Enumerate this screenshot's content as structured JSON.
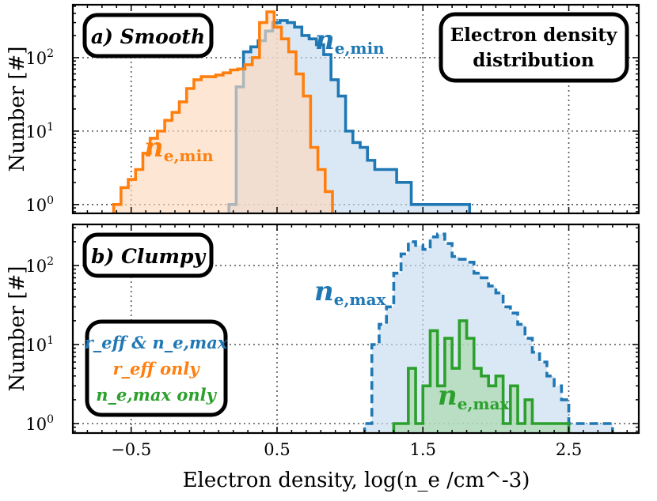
{
  "chart_data": [
    {
      "type": "histogram",
      "panel": "a",
      "panel_label": "a) Smooth",
      "title": "Electron density distribution",
      "title_lines": [
        "Electron density",
        "distribution"
      ],
      "yscale": "log",
      "ylabel": "Number [#]",
      "yticks": [
        "10^0",
        "10^1",
        "10^2"
      ],
      "xticks": [
        "-0.5",
        "0.5",
        "1.5",
        "2.5"
      ],
      "xlim": [
        -0.9,
        2.98
      ],
      "ylim_log10": [
        -0.12,
        2.72
      ],
      "series": [
        {
          "name": "n_e,min (clumpy-less, blue)",
          "label": "n",
          "label_sub": "e,min",
          "color": "#1f77b4",
          "fill": "#c6dbef",
          "linestyle": "solid",
          "bins": [
            0.17,
            0.22,
            0.27,
            0.32,
            0.37,
            0.42,
            0.47,
            0.52,
            0.57,
            0.62,
            0.67,
            0.72,
            0.77,
            0.82,
            0.87,
            0.92,
            0.97,
            1.02,
            1.07,
            1.12,
            1.17,
            1.22,
            1.27,
            1.32,
            1.37,
            1.42,
            1.47,
            1.52,
            1.57,
            1.62,
            1.67,
            1.72,
            1.77,
            1.82
          ],
          "counts": [
            1,
            40,
            120,
            140,
            170,
            230,
            300,
            320,
            300,
            260,
            200,
            180,
            150,
            110,
            50,
            30,
            10,
            7,
            6,
            4,
            3,
            3,
            3,
            2,
            2,
            1,
            1,
            1,
            1,
            1,
            1,
            1,
            1
          ]
        },
        {
          "name": "n_e,min (orange)",
          "label": "n",
          "label_sub": "e,min",
          "color": "#ff7f0e",
          "fill": "#fdd8bd",
          "linestyle": "solid",
          "bins": [
            -0.62,
            -0.57,
            -0.52,
            -0.47,
            -0.42,
            -0.37,
            -0.32,
            -0.27,
            -0.22,
            -0.17,
            -0.12,
            -0.07,
            -0.02,
            0.03,
            0.08,
            0.13,
            0.18,
            0.23,
            0.28,
            0.33,
            0.38,
            0.43,
            0.48,
            0.53,
            0.58,
            0.63,
            0.68,
            0.73,
            0.78,
            0.83,
            0.88
          ],
          "counts": [
            1,
            1.7,
            2.2,
            3,
            5,
            8,
            10,
            14,
            18,
            25,
            38,
            50,
            55,
            55,
            58,
            62,
            68,
            70,
            80,
            100,
            300,
            420,
            260,
            180,
            120,
            60,
            30,
            6,
            3,
            1.5
          ]
        }
      ]
    },
    {
      "type": "histogram",
      "panel": "b",
      "panel_label": "b) Clumpy",
      "yscale": "log",
      "ylabel": "Number [#]",
      "xlabel": "Electron density, log(n_e /cm^-3)",
      "yticks": [
        "10^0",
        "10^1",
        "10^2"
      ],
      "xticks": [
        "-0.5",
        "0.5",
        "1.5",
        "2.5"
      ],
      "xlim": [
        -0.9,
        2.98
      ],
      "ylim_log10": [
        -0.12,
        2.52
      ],
      "legend": {
        "placement": "lower-left",
        "entries": [
          {
            "text": "r_eff & n_e,max",
            "color": "#1f77b4"
          },
          {
            "text": "r_eff only",
            "color": "#ff7f0e"
          },
          {
            "text": "n_e,max only",
            "color": "#2ca02c"
          }
        ]
      },
      "series": [
        {
          "name": "n_e,max (blue, dashed)",
          "label": "n",
          "label_sub": "e,max",
          "color": "#1f77b4",
          "fill": "#c6dbef",
          "linestyle": "dashed",
          "bins": [
            1.1,
            1.15,
            1.2,
            1.25,
            1.3,
            1.35,
            1.4,
            1.45,
            1.5,
            1.55,
            1.6,
            1.65,
            1.7,
            1.75,
            1.8,
            1.85,
            1.9,
            1.95,
            2.0,
            2.05,
            2.1,
            2.15,
            2.2,
            2.25,
            2.3,
            2.35,
            2.4,
            2.45,
            2.5,
            2.55,
            2.6,
            2.65,
            2.7,
            2.75,
            2.8
          ],
          "counts": [
            1,
            10,
            18,
            30,
            80,
            140,
            200,
            180,
            160,
            230,
            250,
            190,
            130,
            120,
            110,
            80,
            70,
            55,
            45,
            30,
            25,
            18,
            12,
            8,
            6,
            4,
            3,
            2,
            1,
            1,
            1,
            1,
            1,
            1
          ]
        },
        {
          "name": "n_e,max (green)",
          "label": "n",
          "label_sub": "e,max",
          "color": "#2ca02c",
          "fill": "#a8d8a8",
          "linestyle": "solid",
          "bins": [
            1.3,
            1.35,
            1.4,
            1.45,
            1.5,
            1.55,
            1.6,
            1.65,
            1.7,
            1.75,
            1.8,
            1.85,
            1.9,
            1.95,
            2.0,
            2.05,
            2.1,
            2.15,
            2.2,
            2.25,
            2.3,
            2.35,
            2.4,
            2.45,
            2.5
          ],
          "counts": [
            1,
            1,
            5,
            1,
            3,
            15,
            3,
            12,
            5,
            20,
            12,
            5,
            4,
            3,
            4,
            1,
            3,
            1,
            2,
            1,
            1,
            1,
            1,
            1
          ]
        }
      ]
    }
  ]
}
